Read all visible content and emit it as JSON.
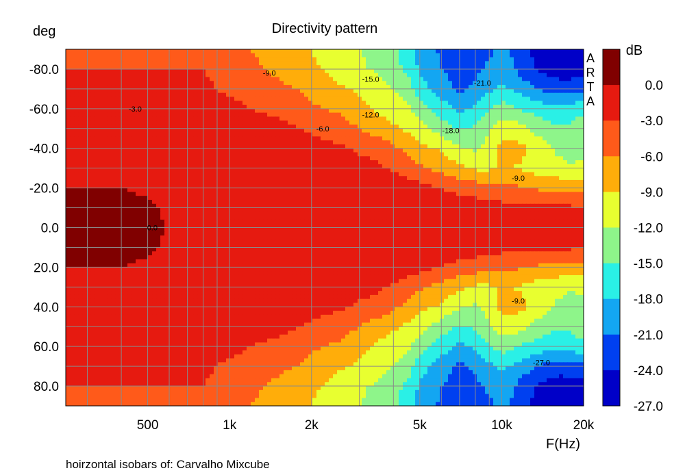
{
  "chart_data": {
    "type": "heatmap",
    "title": "Directivity pattern",
    "ylabel": "deg",
    "xlabel": "F(Hz)",
    "footer": "hoirzontal isobars of: Carvalho Mixcube",
    "watermark": "ARTA",
    "colorbar_label": "dB",
    "x_scale": "log",
    "xlim": [
      250,
      20000
    ],
    "ylim": [
      -90,
      90
    ],
    "y_ticks": [
      -80,
      -60,
      -40,
      -20,
      0,
      20,
      40,
      60,
      80
    ],
    "y_tick_labels": [
      "-80.0",
      "-60.0",
      "-40.0",
      "-20.0",
      "0.0",
      "20.0",
      "40.0",
      "60.0",
      "80.0"
    ],
    "x_ticks": [
      500,
      1000,
      2000,
      5000,
      10000,
      20000
    ],
    "x_tick_labels": [
      "500",
      "1k",
      "2k",
      "5k",
      "10k",
      "20k"
    ],
    "grid": true,
    "isobar_step_db": 3,
    "levels": [
      0.0,
      -3.0,
      -6.0,
      -9.0,
      -12.0,
      -15.0,
      -18.0,
      -21.0,
      -24.0,
      -27.0
    ],
    "level_labels": [
      "0.0",
      "-3.0",
      "-6.0",
      "-9.0",
      "-12.0",
      "-15.0",
      "-18.0",
      "-21.0",
      "-24.0",
      "-27.0"
    ],
    "level_colors": [
      "#800000",
      "#e61a10",
      "#ff5a1a",
      "#ffad0a",
      "#e8ff30",
      "#8ef58a",
      "#2af0e6",
      "#13a6f2",
      "#0040f0",
      "#0000c8"
    ],
    "contour_labels": [
      {
        "text": "-9.0",
        "freq": 1400,
        "deg": -78
      },
      {
        "text": "-15.0",
        "freq": 3300,
        "deg": -75
      },
      {
        "text": "-21.0",
        "freq": 8500,
        "deg": -73
      },
      {
        "text": "-3.0",
        "freq": 450,
        "deg": -60
      },
      {
        "text": "-12.0",
        "freq": 3300,
        "deg": -57
      },
      {
        "text": "-6.0",
        "freq": 2200,
        "deg": -50
      },
      {
        "text": "-18.0",
        "freq": 6500,
        "deg": -49
      },
      {
        "text": "-9.0",
        "freq": 11500,
        "deg": -25
      },
      {
        "text": "0.0",
        "freq": 520,
        "deg": 0
      },
      {
        "text": "-9.0",
        "freq": 11500,
        "deg": 37
      },
      {
        "text": "-27.0",
        "freq": 14000,
        "deg": 68
      }
    ],
    "sample_freqs": [
      250,
      300,
      400,
      500,
      600,
      700,
      800,
      1000,
      1200,
      1500,
      1800,
      2000,
      2500,
      3000,
      3500,
      4000,
      4500,
      5000,
      6000,
      7000,
      8000,
      9000,
      10000,
      11000,
      12000,
      14000,
      16000,
      18000,
      20000
    ],
    "sample_degs": [
      0,
      10,
      20,
      30,
      40,
      50,
      60,
      70,
      80,
      90
    ],
    "level_db": [
      [
        0,
        0,
        0,
        0,
        -2,
        -2,
        -2,
        -2,
        -2,
        -2,
        -2,
        -2,
        -2,
        -2,
        -2,
        -2,
        -2,
        -2,
        -2,
        -2,
        -2,
        -2,
        -3,
        -2,
        -2,
        -2,
        -2,
        -2,
        -2
      ],
      [
        -0.5,
        -0.5,
        -0.5,
        -1,
        -2,
        -2,
        -2,
        -2,
        -2,
        -2,
        -2,
        -2,
        -2,
        -2,
        -2,
        -2,
        -2,
        -2.5,
        -2.5,
        -3,
        -3,
        -3,
        -3.5,
        -4,
        -4,
        -4,
        -4,
        -4,
        -4
      ],
      [
        -1.5,
        -1.5,
        -1.5,
        -2,
        -2,
        -2,
        -2,
        -2,
        -2,
        -2,
        -2,
        -2,
        -2,
        -2,
        -2,
        -2.5,
        -3,
        -3.5,
        -4.5,
        -5.5,
        -6,
        -6.5,
        -7,
        -7,
        -7.5,
        -8,
        -8.5,
        -9,
        -9
      ],
      [
        -2,
        -2,
        -2,
        -2,
        -2,
        -2,
        -2,
        -2,
        -2,
        -2,
        -2,
        -2.5,
        -3,
        -3.5,
        -4,
        -5,
        -6,
        -7,
        -8.5,
        -10,
        -11,
        -11,
        -10,
        -10.5,
        -11,
        -12,
        -12.5,
        -13,
        -13
      ],
      [
        -2,
        -2,
        -2,
        -2,
        -2,
        -2,
        -2,
        -2,
        -2,
        -2,
        -2.5,
        -3.5,
        -4,
        -5,
        -5.5,
        -7,
        -8,
        -9.5,
        -11,
        -13,
        -14,
        -12,
        -9.5,
        -9,
        -10,
        -12,
        -14,
        -15,
        -14
      ],
      [
        -2,
        -2,
        -2,
        -2,
        -2,
        -2,
        -2,
        -2,
        -2.5,
        -3.5,
        -4.5,
        -5,
        -6,
        -7.5,
        -9,
        -10,
        -11,
        -12.5,
        -15,
        -17,
        -16,
        -14,
        -12,
        -12,
        -13,
        -15,
        -16,
        -16,
        -15
      ],
      [
        -2.5,
        -2.5,
        -2.5,
        -2.5,
        -2.5,
        -3,
        -3,
        -3.5,
        -4.5,
        -5.5,
        -6,
        -7,
        -8,
        -9.5,
        -11,
        -12,
        -13,
        -15,
        -18,
        -20,
        -19,
        -17,
        -15,
        -16,
        -17,
        -18,
        -19,
        -18,
        -17
      ],
      [
        -4,
        -4,
        -4,
        -4,
        -4,
        -4,
        -4,
        -5,
        -6,
        -7,
        -7.5,
        -8.5,
        -10,
        -11,
        -12,
        -13.5,
        -15,
        -18,
        -21,
        -23,
        -22,
        -20,
        -19,
        -20,
        -21,
        -23,
        -24,
        -24,
        -23
      ],
      [
        -4.5,
        -4.5,
        -4.5,
        -4.5,
        -4.5,
        -4.5,
        -4.5,
        -5.5,
        -7,
        -8,
        -9,
        -10,
        -11.5,
        -13,
        -14,
        -15.5,
        -17,
        -20,
        -22.5,
        -24,
        -23,
        -22,
        -21,
        -22,
        -24,
        -26,
        -27,
        -27,
        -27
      ],
      [
        -5,
        -5,
        -5,
        -5,
        -5,
        -5,
        -5,
        -6,
        -7.5,
        -8.5,
        -9.5,
        -10.5,
        -12,
        -13.5,
        -14.5,
        -16,
        -18,
        -21,
        -23,
        -24,
        -24,
        -23,
        -22,
        -23,
        -25,
        -27,
        -28,
        -28,
        -28
      ]
    ]
  }
}
